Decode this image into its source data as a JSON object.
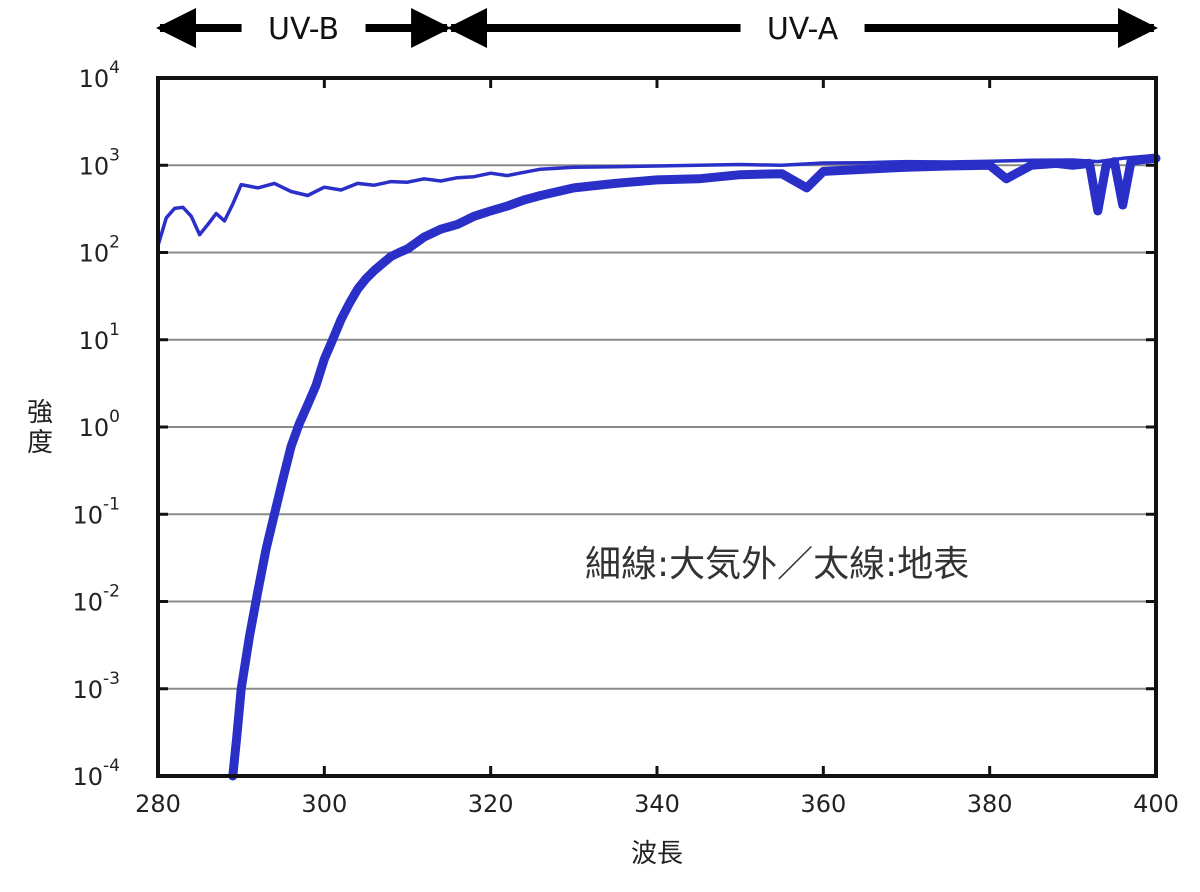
{
  "chart_data": {
    "type": "line",
    "title": "",
    "xlabel": "波長",
    "ylabel": "強度",
    "xlim": [
      280,
      400
    ],
    "ylim": [
      0.0001,
      10000
    ],
    "yscale": "log",
    "x_ticks": [
      "280",
      "300",
      "320",
      "340",
      "360",
      "380",
      "400"
    ],
    "y_ticks": [
      {
        "base": "10",
        "exp": "-4",
        "value": 0.0001
      },
      {
        "base": "10",
        "exp": "-3",
        "value": 0.001
      },
      {
        "base": "10",
        "exp": "-2",
        "value": 0.01
      },
      {
        "base": "10",
        "exp": "-1",
        "value": 0.1
      },
      {
        "base": "10",
        "exp": "0",
        "value": 1
      },
      {
        "base": "10",
        "exp": "1",
        "value": 10
      },
      {
        "base": "10",
        "exp": "2",
        "value": 100
      },
      {
        "base": "10",
        "exp": "3",
        "value": 1000
      },
      {
        "base": "10",
        "exp": "4",
        "value": 10000
      }
    ],
    "grid": "horizontal",
    "bands": [
      {
        "label": "UV-B",
        "from": 280,
        "to": 315
      },
      {
        "label": "UV-A",
        "from": 315,
        "to": 400
      }
    ],
    "annotation": "細線:大気外／太線:地表",
    "line_color": "#2a2fc8",
    "series": [
      {
        "style": "thin",
        "x": [
          280,
          281,
          282,
          283,
          284,
          285,
          286,
          287,
          288,
          289,
          290,
          292,
          294,
          296,
          298,
          300,
          302,
          304,
          306,
          308,
          310,
          312,
          314,
          316,
          318,
          320,
          322,
          324,
          326,
          330,
          335,
          340,
          345,
          350,
          355,
          360,
          365,
          370,
          375,
          380,
          385,
          390,
          393,
          396,
          400
        ],
        "y": [
          120,
          250,
          320,
          330,
          260,
          160,
          210,
          280,
          230,
          360,
          600,
          550,
          620,
          500,
          450,
          560,
          520,
          620,
          590,
          650,
          640,
          700,
          660,
          720,
          740,
          810,
          760,
          830,
          900,
          950,
          960,
          980,
          1000,
          1020,
          1000,
          1060,
          1070,
          1100,
          1090,
          1110,
          1140,
          1150,
          1100,
          1200,
          1300
        ]
      },
      {
        "style": "thick",
        "x": [
          289,
          289.5,
          290,
          291,
          292,
          293,
          294,
          295,
          296,
          297,
          298,
          299,
          300,
          301,
          302,
          303,
          304,
          305,
          306,
          307,
          308,
          309,
          310,
          312,
          314,
          316,
          318,
          320,
          322,
          324,
          326,
          330,
          335,
          340,
          345,
          350,
          355,
          358,
          360,
          365,
          370,
          375,
          380,
          382,
          385,
          388,
          390,
          392,
          393,
          394,
          395,
          396,
          397,
          398,
          400
        ],
        "y": [
          0.0001,
          0.0003,
          0.001,
          0.004,
          0.013,
          0.04,
          0.1,
          0.25,
          0.6,
          1.1,
          1.8,
          3,
          6,
          10,
          17,
          26,
          38,
          50,
          62,
          75,
          90,
          100,
          110,
          150,
          185,
          210,
          260,
          300,
          340,
          400,
          450,
          550,
          620,
          680,
          700,
          780,
          800,
          550,
          850,
          900,
          950,
          980,
          1000,
          700,
          1000,
          1050,
          1000,
          1050,
          300,
          1000,
          1100,
          350,
          1100,
          1150,
          1200
        ]
      }
    ]
  }
}
